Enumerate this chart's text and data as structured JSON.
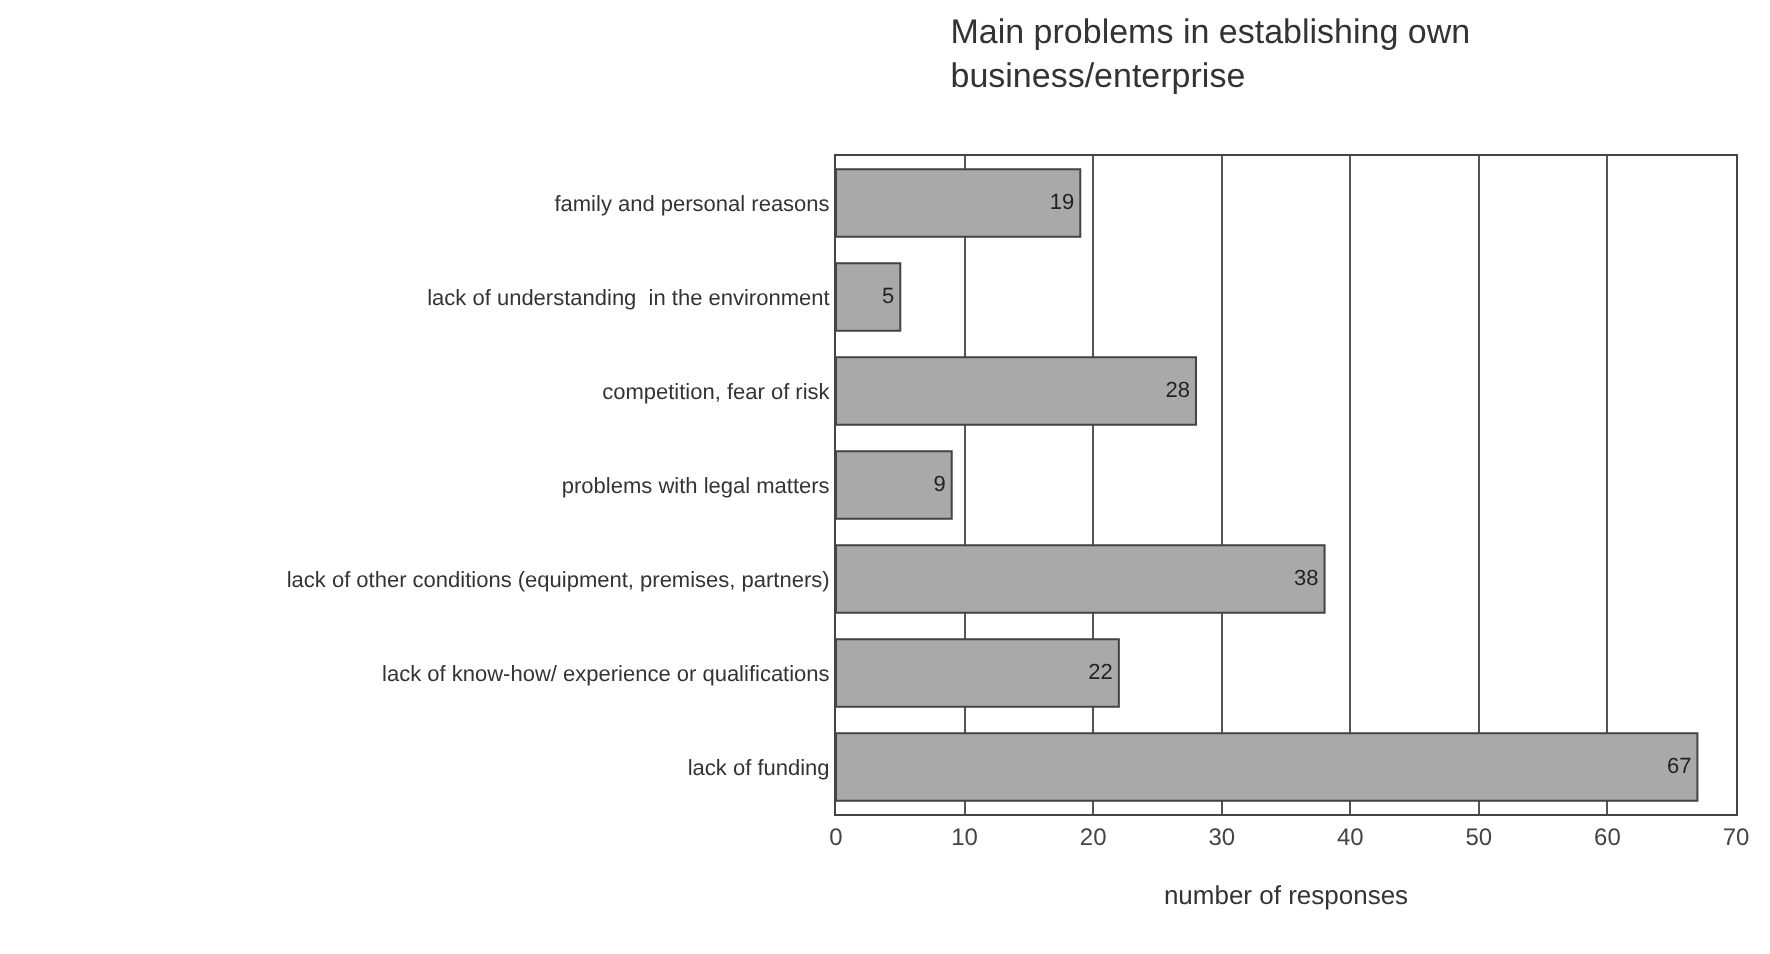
{
  "chart_data": {
    "type": "bar",
    "orientation": "horizontal",
    "title": "Main problems in establishing own\nbusiness/enterprise",
    "xlabel": "number of responses",
    "categories": [
      "family and personal reasons",
      "lack of understanding  in the environment",
      "competition, fear of risk",
      "problems with legal matters",
      "lack of other conditions (equipment, premises, partners)",
      "lack of know-how/ experience or qualifications",
      "lack of funding"
    ],
    "values": [
      19,
      5,
      28,
      9,
      38,
      22,
      67
    ],
    "color": "#a9a9a9",
    "xlim": [
      0,
      70
    ],
    "xticks": [
      0,
      10,
      20,
      30,
      40,
      50,
      60,
      70
    ],
    "grid": "x",
    "data_labels": true,
    "legend": false
  }
}
